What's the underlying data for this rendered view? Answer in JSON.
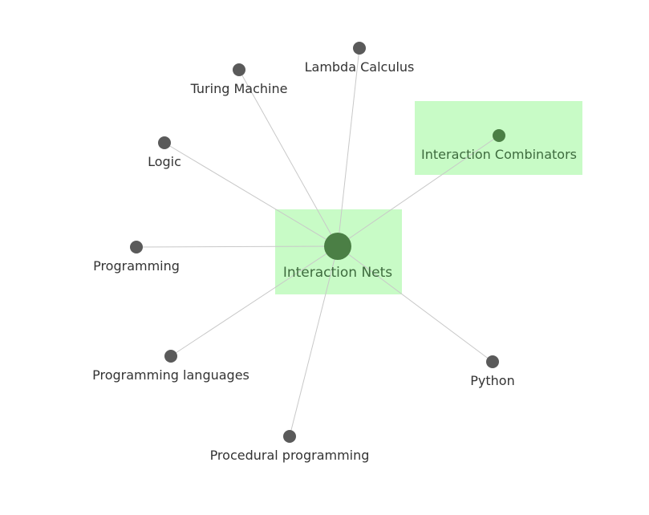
{
  "graph": {
    "center": {
      "id": "interaction-nets",
      "label": "Interaction Nets"
    },
    "nodes": [
      {
        "id": "lambda-calculus",
        "label": "Lambda Calculus"
      },
      {
        "id": "turing-machine",
        "label": "Turing Machine"
      },
      {
        "id": "logic",
        "label": "Logic"
      },
      {
        "id": "interaction-combinators",
        "label": "Interaction Combinators",
        "highlighted": true
      },
      {
        "id": "programming",
        "label": "Programming"
      },
      {
        "id": "programming-languages",
        "label": "Programming languages"
      },
      {
        "id": "procedural-programming",
        "label": "Procedural programming"
      },
      {
        "id": "python",
        "label": "Python"
      }
    ],
    "colors": {
      "highlight_fill": "#c8fbc6",
      "node_default": "#5a5a5a",
      "node_focus": "#4b7f45",
      "edge": "#c8c8c8",
      "label_default": "#333333",
      "label_focus": "#3e6b3e"
    }
  }
}
